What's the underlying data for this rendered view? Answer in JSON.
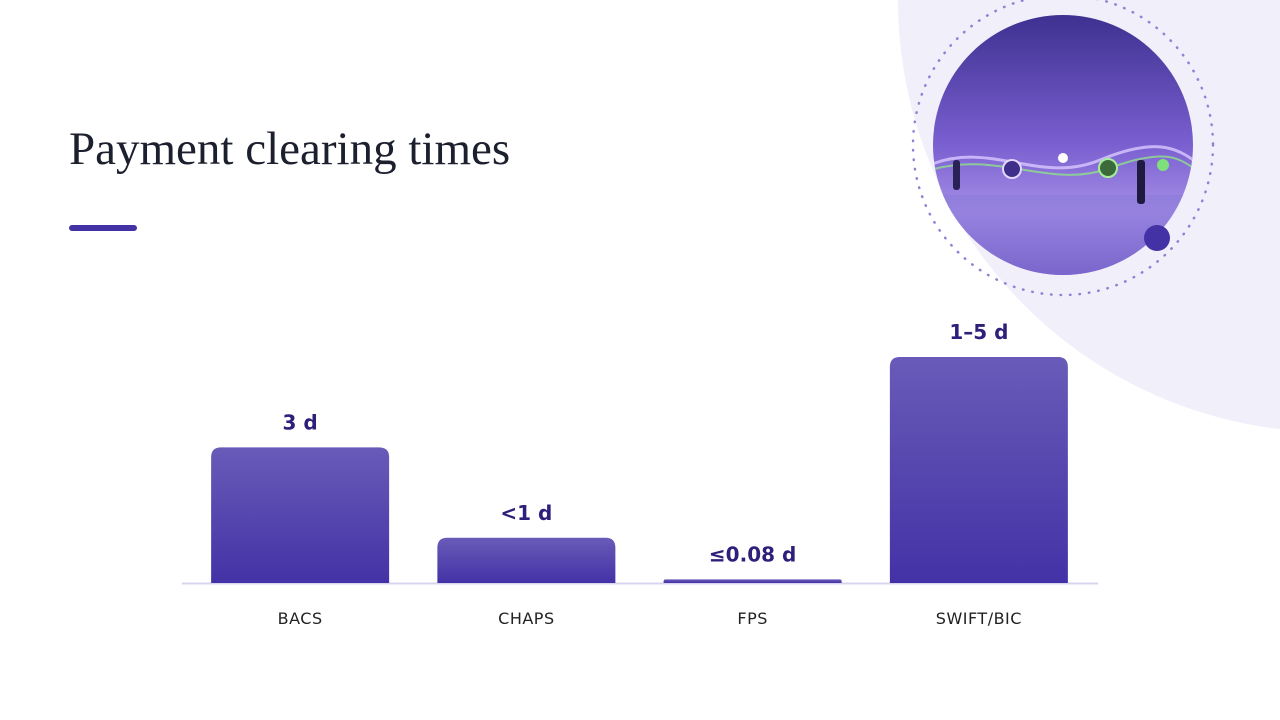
{
  "chart_data": {
    "type": "bar",
    "title": "Payment clearing times",
    "categories": [
      "BACS",
      "CHAPS",
      "FPS",
      "SWIFT/BIC"
    ],
    "values": [
      3,
      1,
      0.08,
      5
    ],
    "value_labels": [
      "3 d",
      "<1 d",
      "≤0.08 d",
      "1–5 d"
    ],
    "color": "#4332a6"
  }
}
